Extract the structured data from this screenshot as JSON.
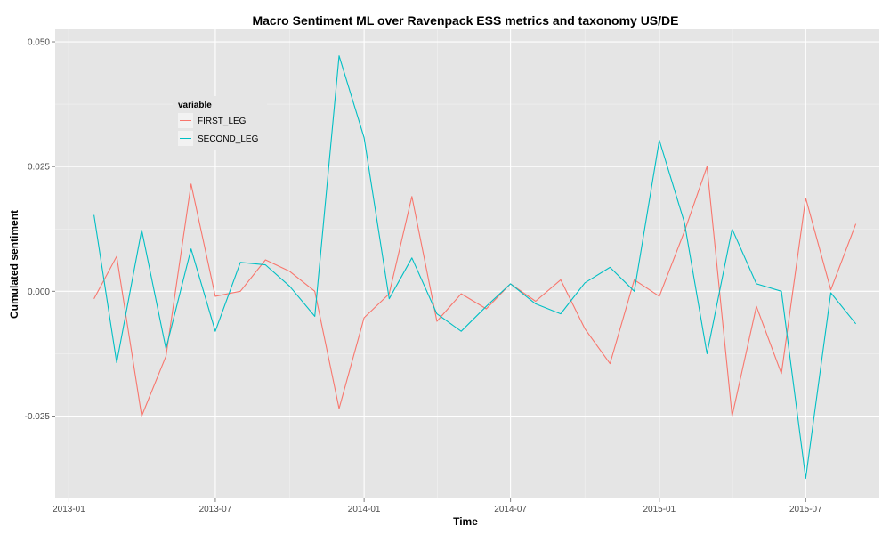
{
  "chart_data": {
    "type": "line",
    "title": "Macro Sentiment ML over Ravenpack ESS metrics and taxonomy US/DE",
    "xlabel": "Time",
    "ylabel": "Cumulated sentiment",
    "x_ticks": [
      "2013-01",
      "2013-07",
      "2014-01",
      "2014-07",
      "2015-01",
      "2015-07"
    ],
    "y_ticks": [
      "-0.025",
      "0.000",
      "0.025",
      "0.050"
    ],
    "xlim": [
      "2012-12-15",
      "2015-09-30"
    ],
    "ylim": [
      -0.0415,
      0.0525
    ],
    "grid": true,
    "legend_position": "top-left",
    "legend_title": "variable",
    "x": [
      "2013-02-01",
      "2013-03-01",
      "2013-04-01",
      "2013-05-01",
      "2013-06-01",
      "2013-07-01",
      "2013-08-01",
      "2013-09-01",
      "2013-10-01",
      "2013-11-01",
      "2013-12-01",
      "2014-01-01",
      "2014-02-01",
      "2014-03-01",
      "2014-04-01",
      "2014-05-01",
      "2014-06-01",
      "2014-07-01",
      "2014-08-01",
      "2014-09-01",
      "2014-10-01",
      "2014-11-01",
      "2014-12-01",
      "2015-01-01",
      "2015-02-01",
      "2015-03-01",
      "2015-04-01",
      "2015-05-01",
      "2015-06-01",
      "2015-07-01",
      "2015-08-01",
      "2015-09-01"
    ],
    "series": [
      {
        "name": "FIRST_LEG",
        "color": "#F8766D",
        "values": [
          -0.0015,
          0.007,
          -0.025,
          -0.013,
          0.0215,
          -0.001,
          0.0,
          0.0063,
          0.004,
          0.0,
          -0.0235,
          -0.0053,
          -0.0005,
          0.019,
          -0.006,
          -0.0005,
          -0.0035,
          0.0015,
          -0.002,
          0.0023,
          -0.0075,
          -0.0145,
          0.0023,
          -0.001,
          0.012,
          0.025,
          -0.025,
          -0.003,
          -0.0165,
          0.0187,
          0.0003,
          0.0135
        ]
      },
      {
        "name": "SECOND_LEG",
        "color": "#00BFC4",
        "values": [
          0.0153,
          -0.0143,
          0.0123,
          -0.0115,
          0.0085,
          -0.008,
          0.0058,
          0.0053,
          0.001,
          -0.005,
          0.0472,
          0.0308,
          -0.0015,
          0.0067,
          -0.0045,
          -0.008,
          -0.003,
          0.0015,
          -0.0025,
          -0.0045,
          0.0017,
          0.0048,
          0.0,
          0.0303,
          0.0138,
          -0.0125,
          0.0125,
          0.0015,
          0.0,
          -0.0375,
          -0.0003,
          -0.0065
        ]
      }
    ]
  }
}
